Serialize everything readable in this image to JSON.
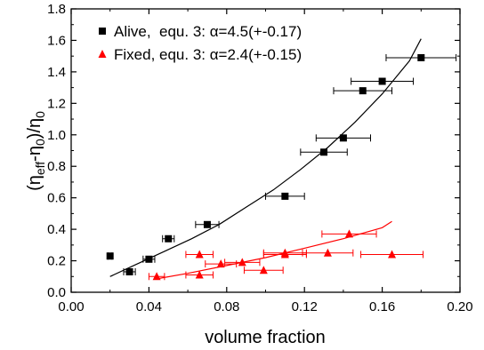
{
  "chart_data": {
    "type": "scatter",
    "title": "",
    "xlabel": "volume fraction",
    "ylabel_parts": [
      "(η",
      "eff",
      "-η",
      "0",
      ")/η",
      "0"
    ],
    "xlim": [
      0.0,
      0.2
    ],
    "ylim": [
      0.0,
      1.8
    ],
    "x_ticks": [
      0.0,
      0.04,
      0.08,
      0.12,
      0.16,
      0.2
    ],
    "x_tick_labels": [
      "0.00",
      "0.04",
      "0.08",
      "0.12",
      "0.16",
      "0.20"
    ],
    "y_ticks": [
      0.0,
      0.2,
      0.4,
      0.6,
      0.8,
      1.0,
      1.2,
      1.4,
      1.6,
      1.8
    ],
    "y_tick_labels": [
      "0.0",
      "0.2",
      "0.4",
      "0.6",
      "0.8",
      "1.0",
      "1.2",
      "1.4",
      "1.6",
      "1.8"
    ],
    "grid": false,
    "legend_position": "top-left",
    "series": [
      {
        "name": "Alive,  equ. 3: α=4.5(+-0.17)",
        "marker": "square",
        "color": "#000000",
        "x": [
          0.02,
          0.03,
          0.04,
          0.05,
          0.07,
          0.11,
          0.13,
          0.14,
          0.15,
          0.16,
          0.18
        ],
        "y": [
          0.23,
          0.13,
          0.21,
          0.34,
          0.43,
          0.61,
          0.89,
          0.98,
          1.28,
          1.34,
          1.49
        ],
        "xerr": [
          0.001,
          0.003,
          0.003,
          0.003,
          0.006,
          0.01,
          0.012,
          0.014,
          0.015,
          0.016,
          0.018
        ],
        "fit_x": [
          0.02,
          0.034,
          0.048,
          0.062,
          0.076,
          0.09,
          0.104,
          0.118,
          0.132,
          0.146,
          0.16,
          0.174,
          0.18
        ],
        "fit_y": [
          0.1,
          0.18,
          0.26,
          0.34,
          0.43,
          0.54,
          0.65,
          0.78,
          0.92,
          1.08,
          1.26,
          1.47,
          1.61
        ]
      },
      {
        "name": "Fixed, equ. 3: α=2.4(+-0.15)",
        "marker": "triangle",
        "color": "#ff0000",
        "x": [
          0.044,
          0.066,
          0.066,
          0.077,
          0.088,
          0.099,
          0.11,
          0.11,
          0.132,
          0.143,
          0.165
        ],
        "y": [
          0.1,
          0.11,
          0.24,
          0.18,
          0.19,
          0.14,
          0.24,
          0.25,
          0.25,
          0.37,
          0.24
        ],
        "xerr": [
          0.004,
          0.007,
          0.007,
          0.008,
          0.009,
          0.01,
          0.011,
          0.011,
          0.013,
          0.014,
          0.016
        ],
        "fit_x": [
          0.044,
          0.06,
          0.08,
          0.1,
          0.12,
          0.14,
          0.16,
          0.165
        ],
        "fit_y": [
          0.085,
          0.12,
          0.17,
          0.22,
          0.28,
          0.34,
          0.41,
          0.45
        ]
      }
    ]
  }
}
